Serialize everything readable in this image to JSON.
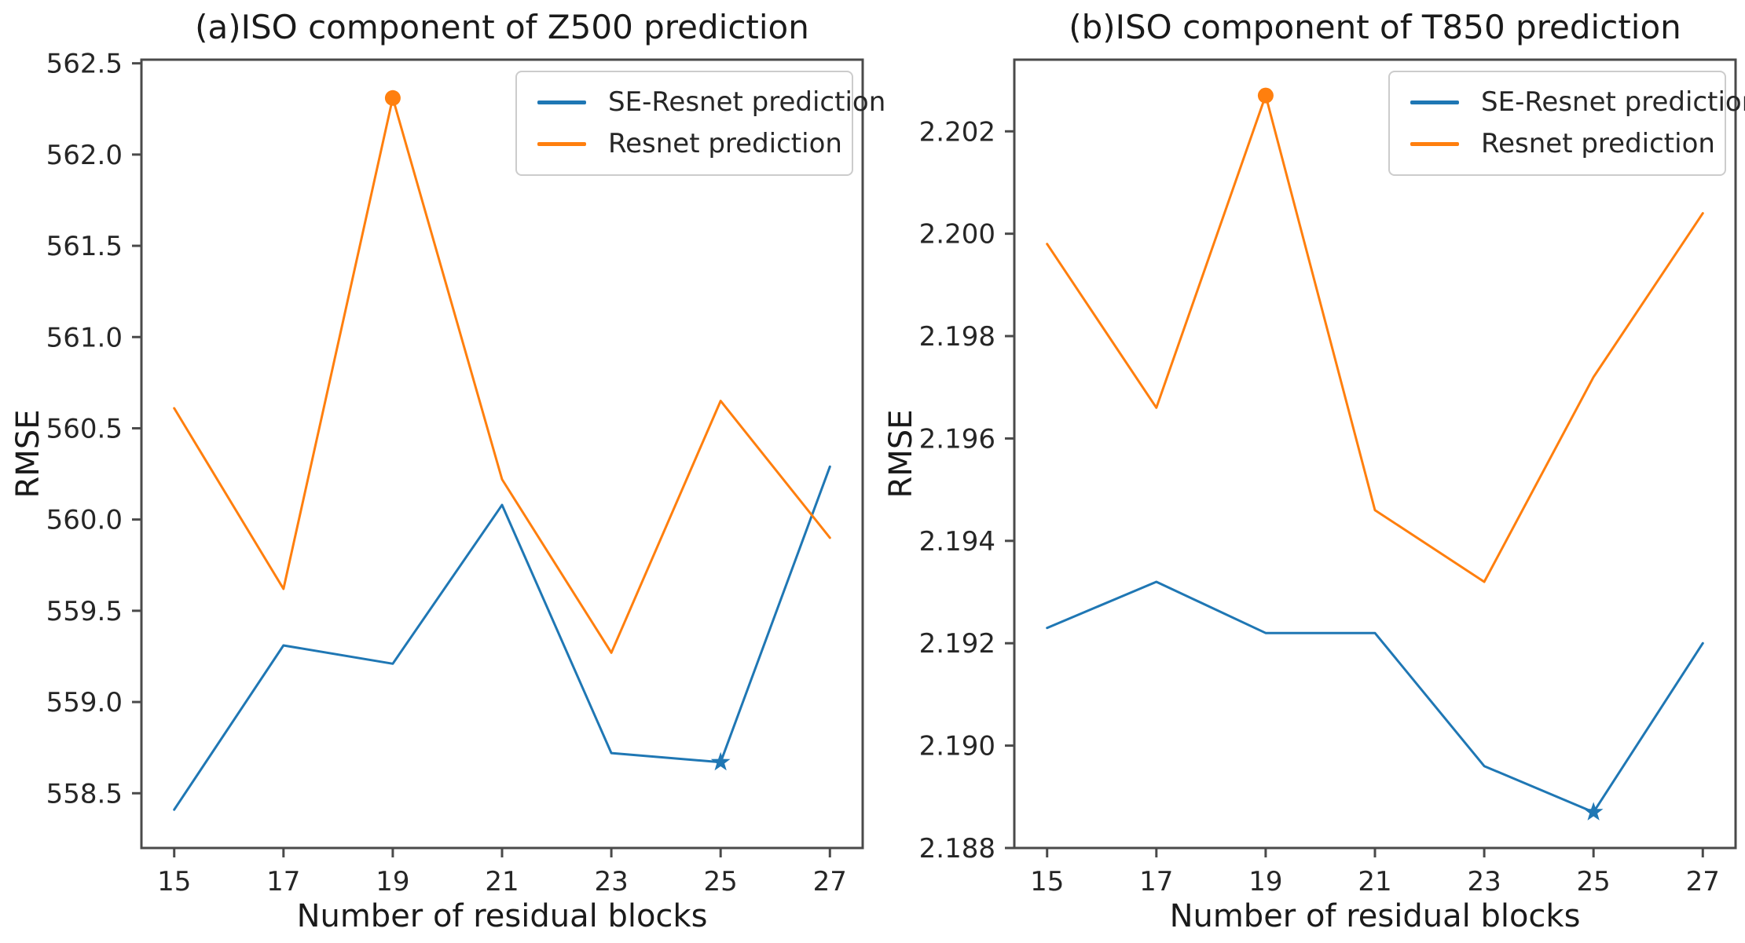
{
  "figure": {
    "background": "#ffffff",
    "frame_color": "#4a4a4a",
    "text_color": "#262626"
  },
  "chart_data": [
    {
      "type": "line",
      "title": "(a)ISO component of Z500 prediction",
      "xlabel": "Number of residual blocks",
      "ylabel": "RMSE",
      "x": [
        15,
        17,
        19,
        21,
        23,
        25,
        27
      ],
      "xtick_labels": [
        "15",
        "17",
        "19",
        "21",
        "23",
        "25",
        "27"
      ],
      "xlim": [
        14.4,
        27.6
      ],
      "ylim": [
        558.2,
        562.52
      ],
      "ytick_values": [
        558.5,
        559.0,
        559.5,
        560.0,
        560.5,
        561.0,
        561.5,
        562.0,
        562.5
      ],
      "ytick_labels": [
        "558.5",
        "559.0",
        "559.5",
        "560.0",
        "560.5",
        "561.0",
        "561.5",
        "562.0",
        "562.5"
      ],
      "grid": false,
      "legend_position": "upper right",
      "series": [
        {
          "name": "SE-Resnet prediction",
          "color": "#1f77b4",
          "values": [
            558.41,
            559.31,
            559.21,
            560.08,
            558.72,
            558.67,
            560.29
          ],
          "marker": {
            "shape": "star",
            "at_x": 25,
            "value": 558.67
          }
        },
        {
          "name": "Resnet prediction",
          "color": "#ff7f0e",
          "values": [
            560.61,
            559.62,
            562.31,
            560.22,
            559.27,
            560.65,
            559.9
          ],
          "marker": {
            "shape": "circle",
            "at_x": 19,
            "value": 562.31
          }
        }
      ]
    },
    {
      "type": "line",
      "title": "(b)ISO component of T850 prediction",
      "xlabel": "Number of residual blocks",
      "ylabel": "RMSE",
      "x": [
        15,
        17,
        19,
        21,
        23,
        25,
        27
      ],
      "xtick_labels": [
        "15",
        "17",
        "19",
        "21",
        "23",
        "25",
        "27"
      ],
      "xlim": [
        14.4,
        27.6
      ],
      "ylim": [
        2.188,
        2.2034
      ],
      "ytick_values": [
        2.188,
        2.19,
        2.192,
        2.194,
        2.196,
        2.198,
        2.2,
        2.202
      ],
      "ytick_labels": [
        "2.188",
        "2.190",
        "2.192",
        "2.194",
        "2.196",
        "2.198",
        "2.200",
        "2.202"
      ],
      "grid": false,
      "legend_position": "upper right",
      "series": [
        {
          "name": "SE-Resnet prediction",
          "color": "#1f77b4",
          "values": [
            2.1923,
            2.1932,
            2.1922,
            2.1922,
            2.1896,
            2.1887,
            2.192
          ],
          "marker": {
            "shape": "star",
            "at_x": 25,
            "value": 2.1887
          }
        },
        {
          "name": "Resnet prediction",
          "color": "#ff7f0e",
          "values": [
            2.1998,
            2.1966,
            2.2027,
            2.1946,
            2.1932,
            2.1972,
            2.2004
          ],
          "marker": {
            "shape": "circle",
            "at_x": 19,
            "value": 2.2027
          }
        }
      ]
    }
  ]
}
